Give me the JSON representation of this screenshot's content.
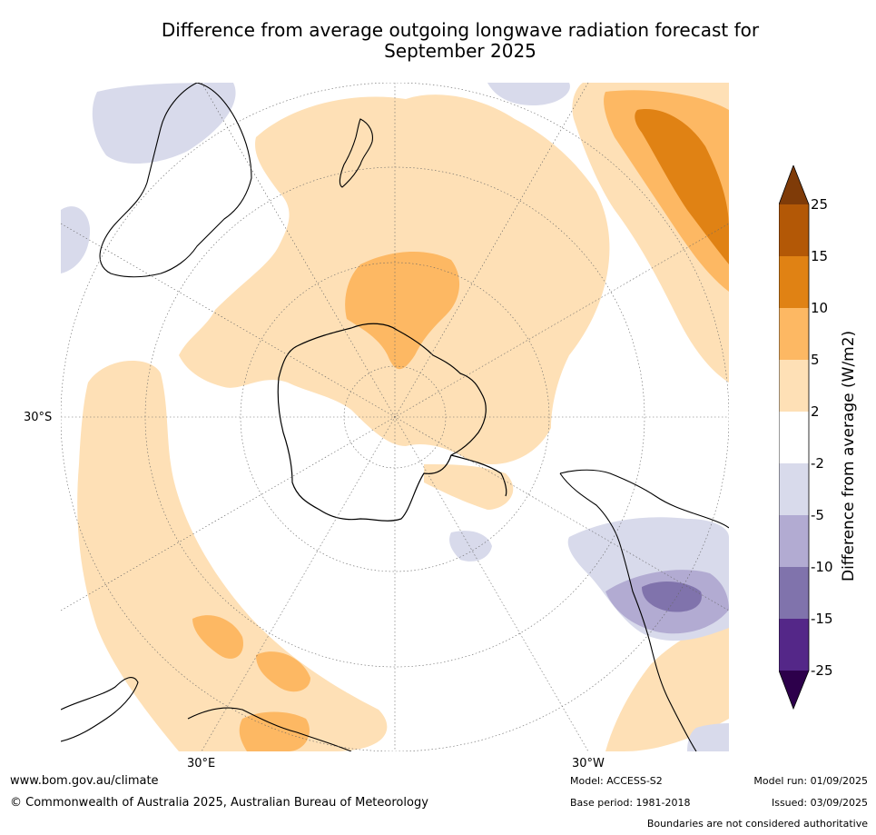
{
  "title": {
    "line1": "Difference from average outgoing longwave radiation forecast for",
    "line2": "September 2025"
  },
  "map": {
    "projection": "south-polar-stereographic",
    "lat_label": "30°S",
    "lon_label_east": "30°E",
    "lon_label_west": "30°W"
  },
  "colorbar": {
    "title": "Difference from average (W/m2)",
    "ticks": [
      "25",
      "15",
      "10",
      "5",
      "2",
      "-2",
      "-5",
      "-10",
      "-15",
      "-25"
    ],
    "colors": {
      "extend_top": "#7f3b08",
      "c15_25": "#b35806",
      "c10_15": "#e08214",
      "c5_10": "#fdb863",
      "c2_5": "#fee0b6",
      "neutral": "#ffffff",
      "m2_m5": "#d8daeb",
      "m5_m10": "#b2abd2",
      "m10_m15": "#8073ac",
      "m15_m25": "#542788",
      "extend_bottom": "#2d004b"
    }
  },
  "footer": {
    "website": "www.bom.gov.au/climate",
    "copyright": "© Commonwealth of Australia 2025, Australian Bureau of Meteorology",
    "model": "Model: ACCESS-S2",
    "base_period": "Base period: 1981-2018",
    "model_run": "Model run: 01/09/2025",
    "issued": "Issued: 03/09/2025",
    "disclaimer": "Boundaries are not considered authoritative"
  }
}
